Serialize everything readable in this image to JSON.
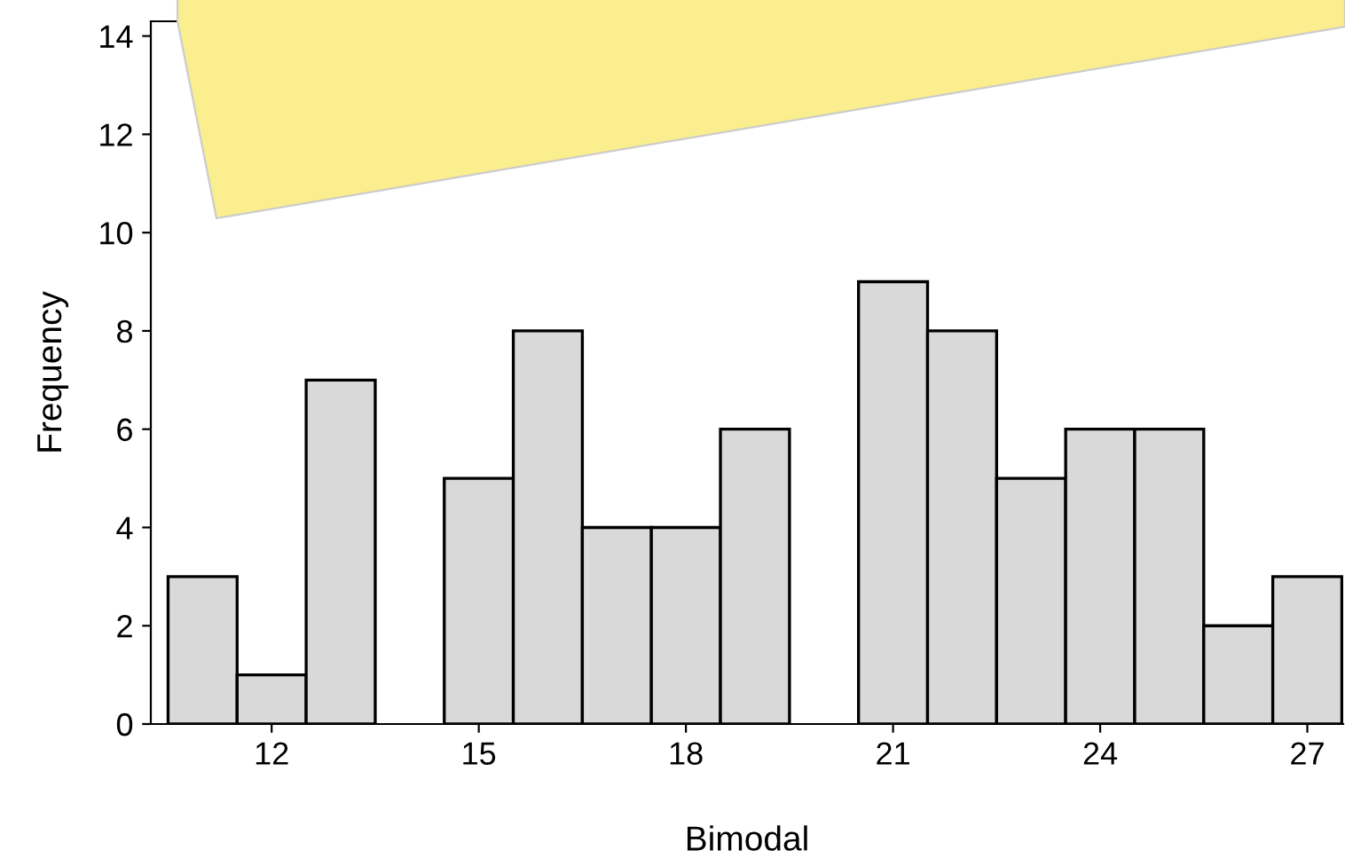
{
  "chart_data": {
    "type": "histogram",
    "xlabel": "Bimodal",
    "ylabel": "Frequency",
    "bins": [
      10.5,
      11.5,
      12.5,
      13.5,
      14.5,
      15.5,
      16.5,
      17.5,
      18.5,
      19.5,
      20.5,
      21.5,
      22.5,
      23.5,
      24.5,
      25.5,
      26.5,
      27.5
    ],
    "values": [
      3,
      1,
      7,
      null,
      5,
      8,
      4,
      4,
      6,
      null,
      9,
      8,
      5,
      6,
      6,
      2,
      3
    ],
    "color": "#d9d9d9",
    "xlim": [
      10.25,
      27.52
    ],
    "ylim": [
      0,
      14.3
    ],
    "xticks": [
      12,
      15,
      18,
      21,
      24,
      27
    ],
    "yticks": [
      0,
      2,
      4,
      6,
      8,
      10,
      12,
      14
    ],
    "grid": false,
    "legend": false
  }
}
